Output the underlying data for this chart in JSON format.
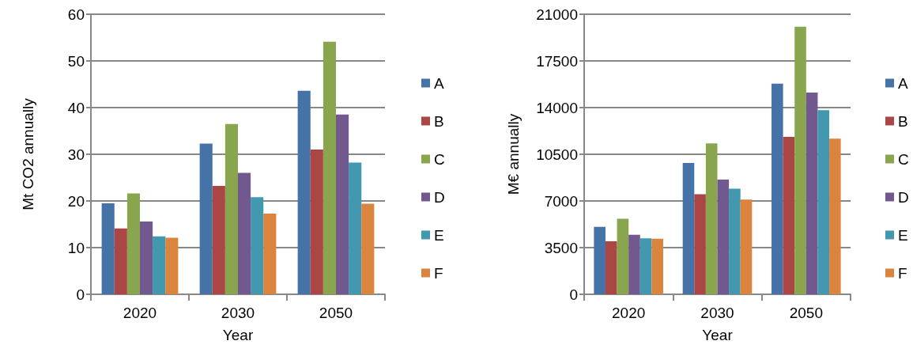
{
  "chart_data": [
    {
      "type": "bar",
      "xlabel": "Year",
      "ylabel": "Mt CO2 annually",
      "categories": [
        "2020",
        "2030",
        "2050"
      ],
      "ylim": [
        0,
        60
      ],
      "yticks": [
        0,
        10,
        20,
        30,
        40,
        50,
        60
      ],
      "grid": "y",
      "legend": "right",
      "series": [
        {
          "name": "A",
          "color": "#4572a7",
          "values": [
            19.5,
            32.3,
            43.6
          ]
        },
        {
          "name": "B",
          "color": "#aa4643",
          "values": [
            14.1,
            23.2,
            31.0
          ]
        },
        {
          "name": "C",
          "color": "#89a54e",
          "values": [
            21.6,
            36.5,
            54.1
          ]
        },
        {
          "name": "D",
          "color": "#71588f",
          "values": [
            15.6,
            26.0,
            38.5
          ]
        },
        {
          "name": "E",
          "color": "#4198af",
          "values": [
            12.4,
            20.8,
            28.2
          ]
        },
        {
          "name": "F",
          "color": "#db843d",
          "values": [
            12.1,
            17.3,
            19.4
          ]
        }
      ]
    },
    {
      "type": "bar",
      "xlabel": "Year",
      "ylabel": "M€ annually",
      "categories": [
        "2020",
        "2030",
        "2050"
      ],
      "ylim": [
        0,
        21000
      ],
      "yticks": [
        0,
        3500,
        7000,
        10500,
        14000,
        17500,
        21000
      ],
      "grid": "y",
      "legend": "right",
      "series": [
        {
          "name": "A",
          "color": "#4572a7",
          "values": [
            5060,
            9850,
            15800
          ]
        },
        {
          "name": "B",
          "color": "#aa4643",
          "values": [
            3970,
            7500,
            11810
          ]
        },
        {
          "name": "C",
          "color": "#89a54e",
          "values": [
            5660,
            11320,
            20070
          ]
        },
        {
          "name": "D",
          "color": "#71588f",
          "values": [
            4470,
            8600,
            15130
          ]
        },
        {
          "name": "E",
          "color": "#4198af",
          "values": [
            4190,
            7920,
            13800
          ]
        },
        {
          "name": "F",
          "color": "#db843d",
          "values": [
            4170,
            7110,
            11670
          ]
        }
      ]
    }
  ]
}
